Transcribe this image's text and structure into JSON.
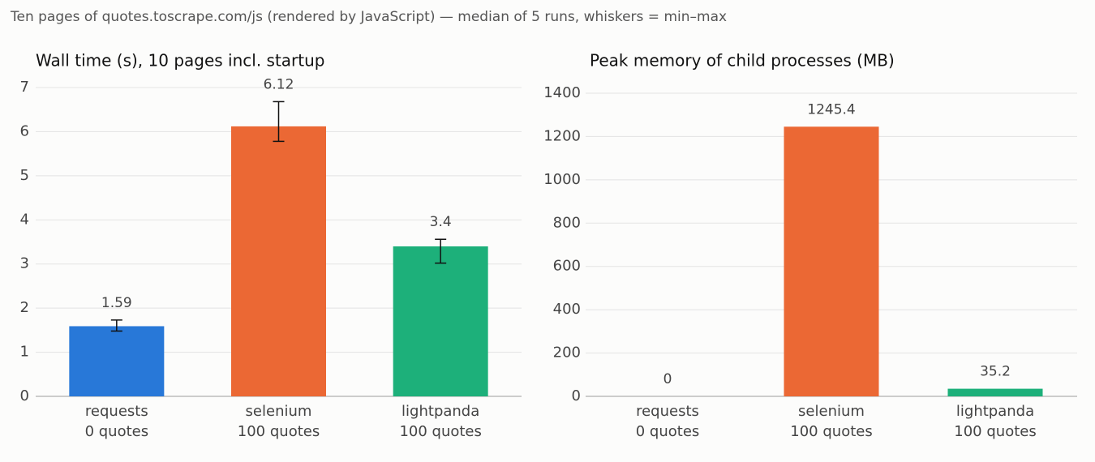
{
  "title": "Ten pages of quotes.toscrape.com/js (rendered by JavaScript) — median of 5 runs, whiskers = min–max",
  "chart_data": [
    {
      "type": "bar",
      "title": "Wall time (s), 10 pages incl. startup",
      "categories": [
        "requests\n0 quotes",
        "selenium\n100 quotes",
        "lightpanda\n100 quotes"
      ],
      "values": [
        1.59,
        6.12,
        3.4
      ],
      "min": [
        1.48,
        5.78,
        3.02
      ],
      "max": [
        1.73,
        6.68,
        3.56
      ],
      "colors": [
        "#2878d8",
        "#eb6834",
        "#1db07a"
      ],
      "ylim": [
        0,
        7
      ],
      "yticks": [
        0,
        1,
        2,
        3,
        4,
        5,
        6,
        7
      ],
      "grid": true
    },
    {
      "type": "bar",
      "title": "Peak memory of child processes (MB)",
      "categories": [
        "requests\n0 quotes",
        "selenium\n100 quotes",
        "lightpanda\n100 quotes"
      ],
      "values": [
        0,
        1245.4,
        35.2
      ],
      "colors": [
        "#2878d8",
        "#eb6834",
        "#1db07a"
      ],
      "ylim": [
        0,
        1400
      ],
      "yticks": [
        0,
        200,
        400,
        600,
        800,
        1000,
        1200,
        1400
      ],
      "grid": true
    }
  ]
}
